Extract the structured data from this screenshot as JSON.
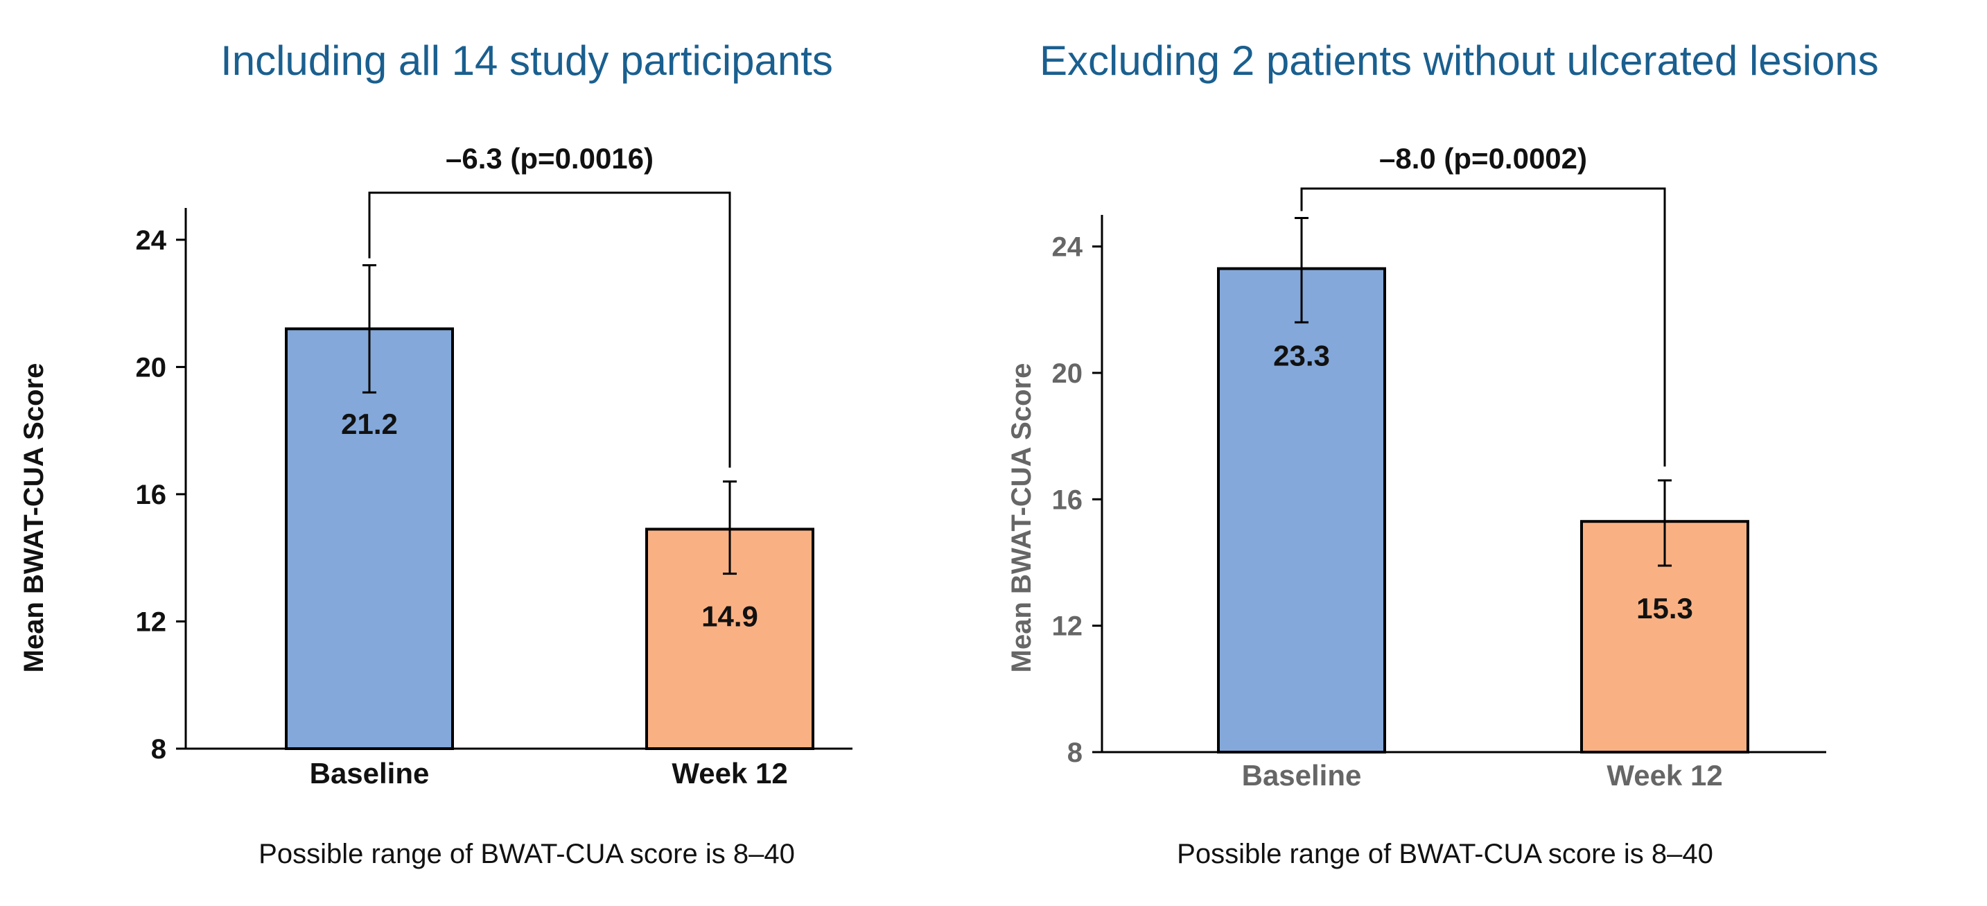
{
  "colors": {
    "title": "#1a5f8f",
    "baseline_bar": "#84a8d9",
    "week12_bar": "#f9b183",
    "axis": "#000000",
    "text_dark": "#111111",
    "text_grey": "#666666"
  },
  "chart_data": [
    {
      "type": "bar",
      "title": "Including all 14 study participants",
      "xlabel": "",
      "ylabel": "Mean BWAT-CUA Score",
      "ylim": [
        8,
        25
      ],
      "yticks": [
        8,
        12,
        16,
        20,
        24
      ],
      "categories": [
        "Baseline",
        "Week 12"
      ],
      "values": [
        21.2,
        14.9
      ],
      "value_labels": [
        "21.2",
        "14.9"
      ],
      "error_low": [
        19.2,
        13.5
      ],
      "error_high": [
        23.2,
        16.4
      ],
      "bracket_label": "–6.3 (p=0.0016)",
      "footnote": "Possible range of BWAT-CUA score is 8–40",
      "grid": false
    },
    {
      "type": "bar",
      "title": "Excluding 2 patients without ulcerated lesions",
      "xlabel": "",
      "ylabel": "Mean BWAT-CUA Score",
      "ylim": [
        8,
        25
      ],
      "yticks": [
        8,
        12,
        16,
        20,
        24
      ],
      "categories": [
        "Baseline",
        "Week 12"
      ],
      "values": [
        23.3,
        15.3
      ],
      "value_labels": [
        "23.3",
        "15.3"
      ],
      "error_low": [
        21.6,
        13.9
      ],
      "error_high": [
        24.9,
        16.6
      ],
      "bracket_label": "–8.0 (p=0.0002)",
      "footnote": "Possible range of BWAT-CUA score is 8–40",
      "grid": false
    }
  ]
}
